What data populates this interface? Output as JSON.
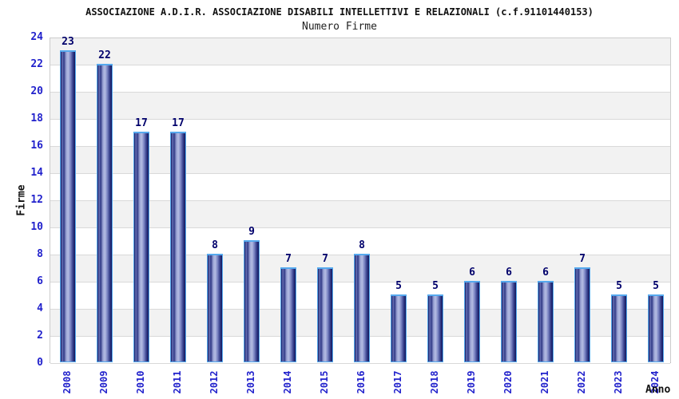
{
  "chart_data": {
    "type": "bar",
    "title": "ASSOCIAZIONE A.D.I.R. ASSOCIAZIONE DISABILI INTELLETTIVI E RELAZIONALI (c.f.91101440153)",
    "subtitle": "Numero Firme",
    "xlabel": "Anno",
    "ylabel": "Firme",
    "categories": [
      "2008",
      "2009",
      "2010",
      "2011",
      "2012",
      "2013",
      "2014",
      "2015",
      "2016",
      "2017",
      "2018",
      "2019",
      "2020",
      "2021",
      "2022",
      "2023",
      "2024"
    ],
    "values": [
      23,
      22,
      17,
      17,
      8,
      9,
      7,
      7,
      8,
      5,
      5,
      6,
      6,
      6,
      7,
      5,
      5
    ],
    "ylim": [
      0,
      24
    ],
    "ytick_step": 2,
    "grid": "horizontal-bands-alternating",
    "legend": "none"
  },
  "colors": {
    "axis_text_blue": "#2222cc",
    "value_label_navy": "#00006b",
    "bar_border_lightblue": "#55a9ee",
    "bar_gradient": [
      "#131a63",
      "#6a74b6",
      "#2e3784",
      "#9aa3d4",
      "#b4bce2",
      "#7c86c4",
      "#39428e",
      "#10165c"
    ],
    "band_gray": "#f2f2f2",
    "grid_line": "#d9d9d9",
    "plot_border": "#cccccc",
    "text_black": "#111111"
  }
}
